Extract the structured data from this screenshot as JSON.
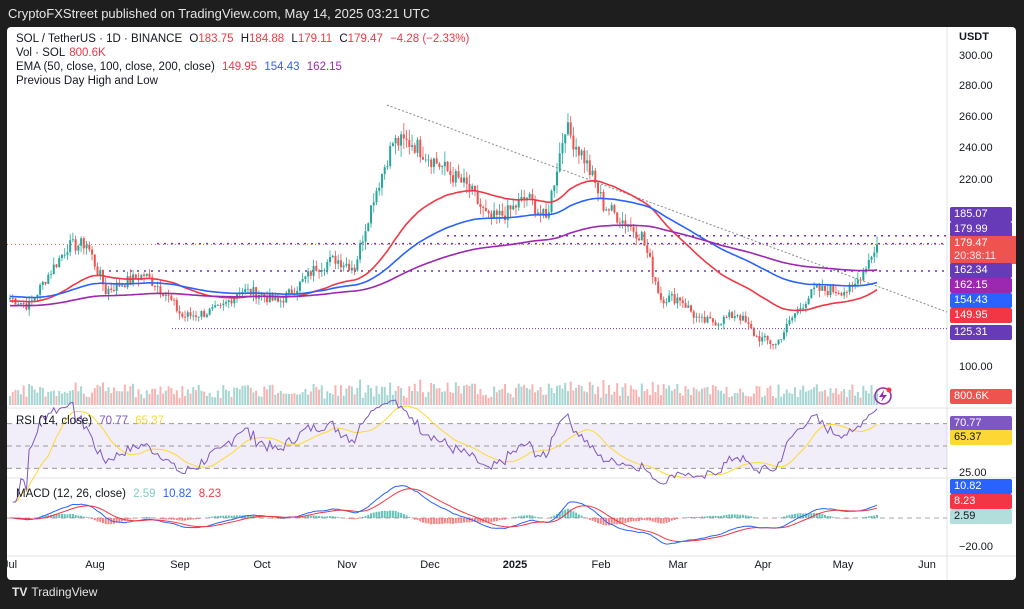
{
  "header": {
    "published": "CryptoFXStreet published on TradingView.com, May 14, 2025 03:21 UTC"
  },
  "legend": {
    "symbol": "SOL / TetherUS · 1D · BINANCE",
    "o_label": "O",
    "open": "183.75",
    "h_label": "H",
    "high": "184.88",
    "l_label": "L",
    "low": "179.11",
    "c_label": "C",
    "close": "179.47",
    "change": "−4.28 (−2.33%)",
    "vol_label": "Vol · SOL",
    "vol": "800.6K",
    "ema_label": "EMA (50, close, 100, close, 200, close)",
    "ema50": "149.95",
    "ema100": "154.43",
    "ema200": "162.15",
    "pdhl": "Previous Day High and Low",
    "rsi_label": "RSI (14, close)",
    "rsi": "70.77",
    "rsi_ma": "65.37",
    "macd_label": "MACD (12, 26, close)",
    "macd_hist": "2.59",
    "macd": "10.82",
    "macd_signal": "8.23"
  },
  "price_axis": {
    "currency": "USDT",
    "ticks": [
      "300.00",
      "280.00",
      "260.00",
      "240.00",
      "220.00",
      "100.00"
    ],
    "rsi_ticks": [
      "25.00"
    ],
    "macd_ticks": [
      "−20.00"
    ]
  },
  "price_labels": {
    "l1": "185.07",
    "l2": "179.99",
    "last": "179.47",
    "countdown": "20:38:11",
    "l3": "162.34",
    "ema200": "162.15",
    "ema100": "154.43",
    "ema50": "149.95",
    "l4": "125.31",
    "vol": "800.6K",
    "rsi": "70.77",
    "rsi_ma": "65.37",
    "macd": "10.82",
    "signal": "8.23",
    "hist": "2.59"
  },
  "time_axis": [
    "Jul",
    "Aug",
    "Sep",
    "Oct",
    "Nov",
    "Dec",
    "2025",
    "Feb",
    "Mar",
    "Apr",
    "May",
    "Jun"
  ],
  "footer": {
    "brand": "TradingView"
  },
  "colors": {
    "up": "#26a69a",
    "down": "#ef5350",
    "ema50": "#f23645",
    "ema100": "#2962ff",
    "ema200": "#9c27b0",
    "rsi": "#7e57c2",
    "rsi_ma": "#fdd835",
    "levels": "#673ab7"
  },
  "chart_data": {
    "type": "candlestick",
    "title": "SOL / TetherUS · 1D · BINANCE",
    "ylim": [
      95,
      305
    ],
    "horizontal_levels": [
      185.07,
      179.99,
      162.34,
      125.31
    ],
    "weekly_closes": [
      [
        "2024-07-01",
        145
      ],
      [
        "2024-07-08",
        140
      ],
      [
        "2024-07-15",
        160
      ],
      [
        "2024-07-22",
        178
      ],
      [
        "2024-07-29",
        180
      ],
      [
        "2024-08-05",
        150
      ],
      [
        "2024-08-12",
        155
      ],
      [
        "2024-08-19",
        160
      ],
      [
        "2024-08-26",
        150
      ],
      [
        "2024-09-02",
        133
      ],
      [
        "2024-09-09",
        135
      ],
      [
        "2024-09-16",
        138
      ],
      [
        "2024-09-23",
        150
      ],
      [
        "2024-09-30",
        148
      ],
      [
        "2024-10-07",
        142
      ],
      [
        "2024-10-14",
        152
      ],
      [
        "2024-10-21",
        165
      ],
      [
        "2024-10-28",
        170
      ],
      [
        "2024-11-04",
        165
      ],
      [
        "2024-11-11",
        210
      ],
      [
        "2024-11-18",
        245
      ],
      [
        "2024-11-25",
        245
      ],
      [
        "2024-12-02",
        235
      ],
      [
        "2024-12-09",
        225
      ],
      [
        "2024-12-16",
        215
      ],
      [
        "2024-12-23",
        195
      ],
      [
        "2024-12-30",
        200
      ],
      [
        "2025-01-06",
        210
      ],
      [
        "2025-01-13",
        195
      ],
      [
        "2025-01-20",
        255
      ],
      [
        "2025-01-27",
        235
      ],
      [
        "2025-02-03",
        205
      ],
      [
        "2025-02-10",
        195
      ],
      [
        "2025-02-17",
        185
      ],
      [
        "2025-02-24",
        145
      ],
      [
        "2025-03-03",
        145
      ],
      [
        "2025-03-10",
        130
      ],
      [
        "2025-03-17",
        130
      ],
      [
        "2025-03-24",
        135
      ],
      [
        "2025-03-31",
        120
      ],
      [
        "2025-04-07",
        115
      ],
      [
        "2025-04-14",
        135
      ],
      [
        "2025-04-21",
        150
      ],
      [
        "2025-04-28",
        150
      ],
      [
        "2025-05-05",
        150
      ],
      [
        "2025-05-14",
        179.47
      ]
    ]
  }
}
